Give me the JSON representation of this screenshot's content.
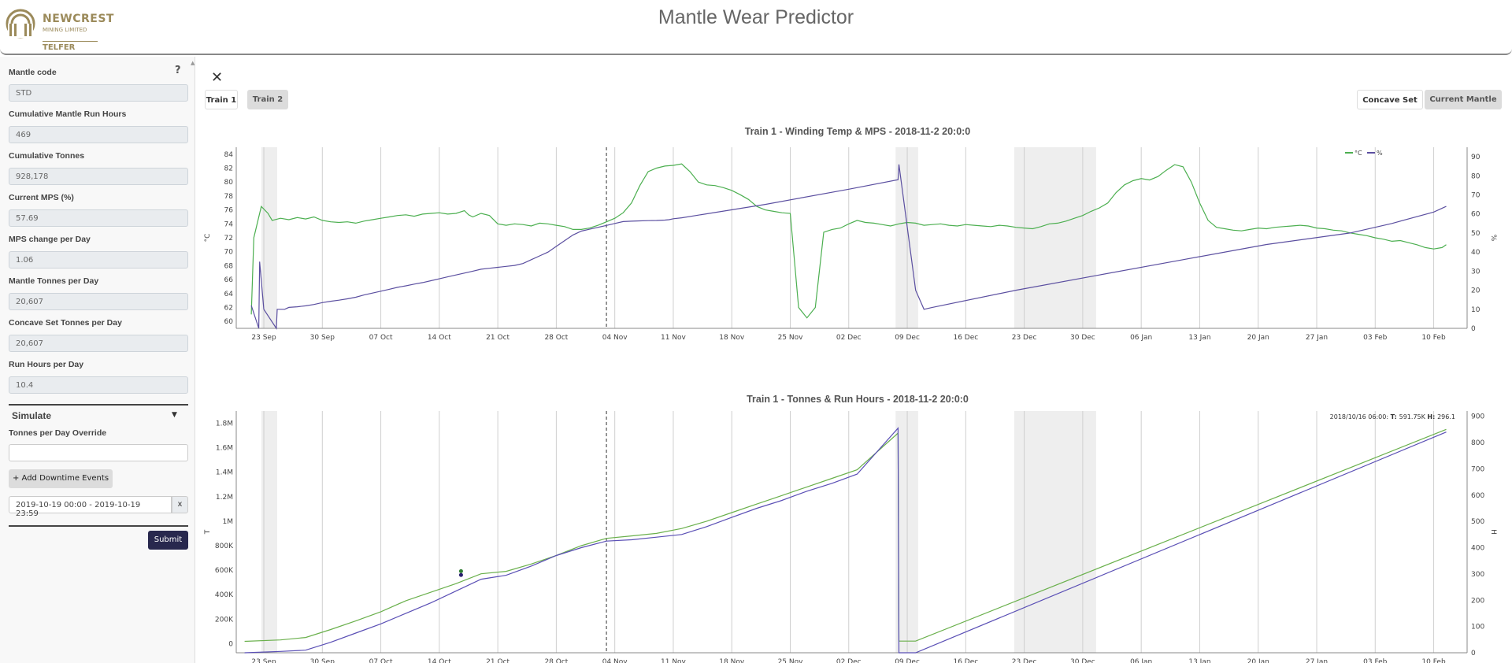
{
  "header": {
    "title": "Mantle Wear Predictor",
    "logo": {
      "name": "NEWCREST",
      "sub": "MINING LIMITED",
      "site": "TELFER"
    }
  },
  "sidebar": {
    "help": "?",
    "fields": [
      {
        "label": "Mantle code",
        "value": "STD"
      },
      {
        "label": "Cumulative Mantle Run Hours",
        "value": "469"
      },
      {
        "label": "Cumulative Tonnes",
        "value": "928,178"
      },
      {
        "label": "Current MPS (%)",
        "value": "57.69"
      },
      {
        "label": "MPS change per Day",
        "value": "1.06"
      },
      {
        "label": "Mantle Tonnes per Day",
        "value": "20,607"
      },
      {
        "label": "Concave Set Tonnes per Day",
        "value": "20,607"
      },
      {
        "label": "Run Hours per Day",
        "value": "10.4"
      }
    ],
    "simulate": {
      "label": "Simulate",
      "override_label": "Tonnes per Day Override",
      "override_value": "",
      "add_downtime": "+ Add Downtime Events",
      "date_range": "2019-10-19 00:00 - 2019-10-19 23:59",
      "remove": "x",
      "submit": "Submit"
    }
  },
  "main": {
    "close": "✕",
    "tabs": [
      "Train 1",
      "Train 2"
    ],
    "right_tabs": [
      "Concave Set",
      "Current Mantle"
    ]
  },
  "chart_data": [
    {
      "type": "line",
      "title": "Train 1 - Winding Temp & MPS - 2018-11-2 20:0:0",
      "ylabel": "°C",
      "y2label": "%",
      "ylim": [
        59,
        85
      ],
      "y2lim": [
        0,
        95
      ],
      "yticks": [
        60,
        62,
        64,
        66,
        68,
        70,
        72,
        74,
        76,
        78,
        80,
        82,
        84
      ],
      "y2ticks": [
        0,
        10,
        20,
        30,
        40,
        50,
        60,
        70,
        80,
        90
      ],
      "xticks": [
        "23 Sep",
        "30 Sep",
        "07 Oct",
        "14 Oct",
        "21 Oct",
        "28 Oct",
        "04 Nov",
        "11 Nov",
        "18 Nov",
        "25 Nov",
        "02 Dec",
        "09 Dec",
        "16 Dec",
        "23 Dec",
        "30 Dec",
        "06 Jan",
        "13 Jan",
        "20 Jan",
        "27 Jan",
        "03 Feb",
        "10 Feb"
      ],
      "legend": [
        "°C",
        "%"
      ],
      "legend_position": "top-right",
      "series": [
        {
          "name": "°C",
          "color": "#4caf50",
          "x": [
            -1.5,
            -1.2,
            -0.3,
            0.5,
            1,
            2,
            3,
            4,
            5,
            6,
            7,
            8,
            9,
            10,
            11,
            12,
            13,
            14,
            15,
            16,
            17,
            18,
            19,
            20,
            21,
            22,
            23,
            24,
            24.5,
            25,
            26,
            27,
            28,
            29,
            30,
            31,
            32,
            33,
            34,
            35,
            36,
            37,
            38,
            39,
            40,
            41,
            42,
            43,
            44,
            45,
            46,
            47,
            48,
            49,
            50,
            51,
            52,
            53,
            54,
            55,
            56,
            57,
            58,
            59,
            60,
            61,
            62,
            63,
            64,
            65,
            66,
            67,
            68,
            69,
            70,
            71,
            72,
            73,
            74,
            75,
            76,
            77,
            78,
            79,
            80,
            81,
            82,
            83,
            84,
            85,
            86,
            87,
            88,
            89,
            90,
            91,
            92,
            93,
            94,
            95,
            96,
            97,
            98,
            99,
            100,
            101,
            102,
            103,
            104,
            105,
            106,
            107,
            108,
            109,
            110,
            111,
            112,
            113,
            114,
            115,
            116,
            117,
            118,
            119,
            120,
            121,
            122,
            123,
            124,
            125,
            126,
            127,
            128,
            129,
            130,
            131,
            132,
            133,
            134,
            135,
            136,
            137,
            138,
            139,
            140,
            141,
            141.5
          ],
          "y": [
            61,
            72,
            76.5,
            75.5,
            74.5,
            74.8,
            74.6,
            74.9,
            74.7,
            75,
            74.5,
            74.3,
            74.2,
            74.3,
            74.1,
            74.4,
            74.6,
            74.8,
            75,
            75.2,
            75.3,
            75.1,
            75.4,
            75.5,
            75.6,
            75.4,
            75.5,
            75.9,
            75.3,
            75,
            75.5,
            75.2,
            74,
            73.8,
            74,
            73.9,
            73.7,
            74.1,
            74,
            73.8,
            73.6,
            73.2,
            73.2,
            73.4,
            73.8,
            74.3,
            74.8,
            75.6,
            77,
            79.5,
            81.5,
            82,
            82.3,
            82.4,
            82.6,
            81.5,
            80,
            79.6,
            79.5,
            79.2,
            78.8,
            78.2,
            77.5,
            76.5,
            76,
            75.8,
            75.6,
            75.5,
            62,
            60.5,
            62,
            72.8,
            73.2,
            73.4,
            74,
            74.5,
            74.2,
            74.1,
            73.9,
            73.7,
            74,
            74.2,
            74.1,
            73.8,
            73.9,
            74,
            73.8,
            73.7,
            73.9,
            73.8,
            73.7,
            73.6,
            73.8,
            73.7,
            73.5,
            73.4,
            73.3,
            73.6,
            74,
            74.1,
            74.4,
            74.8,
            75.2,
            75.8,
            76.3,
            77,
            78.5,
            79.6,
            80.2,
            80.5,
            80.3,
            80.8,
            81.7,
            82.5,
            82.2,
            80,
            77,
            74.5,
            73.5,
            73.3,
            73.1,
            73,
            73.2,
            73.4,
            73.3,
            73.5,
            73.6,
            73.7,
            73.8,
            73.7,
            73.4,
            73.3,
            73.1,
            73,
            72.7,
            72.5,
            72.3,
            72,
            71.8,
            71.5,
            71.6,
            71.3,
            71,
            70.6,
            70.4,
            70.6,
            71
          ]
        },
        {
          "name": "%",
          "color": "#5b4fa0",
          "x": [
            -1.5,
            -0.6,
            -0.5,
            0,
            1.5,
            1.6,
            2.5,
            3,
            4,
            5,
            6,
            7,
            8,
            9,
            10,
            11,
            12,
            13,
            14,
            15,
            16,
            17,
            18,
            19,
            20,
            21,
            22,
            23,
            24,
            25,
            26,
            27,
            28,
            29,
            30,
            31,
            32,
            33,
            34,
            35,
            36,
            37,
            38,
            39,
            40,
            41,
            42,
            43,
            44,
            45,
            46,
            47,
            48,
            48.5,
            49,
            50,
            60,
            70,
            75.9,
            76,
            78,
            79,
            80,
            90,
            100,
            110,
            120,
            130,
            135,
            140,
            141.5
          ],
          "y": [
            12,
            0,
            35,
            10,
            0,
            10,
            10,
            11,
            11.3,
            11.8,
            12.5,
            13.5,
            14.2,
            14.8,
            15.5,
            16.3,
            17.5,
            18.5,
            19.5,
            20.5,
            21.5,
            22.3,
            23.2,
            24,
            25,
            26,
            27,
            28,
            29,
            30,
            31,
            31.5,
            32,
            32.5,
            33,
            34,
            36,
            38,
            40,
            43,
            46,
            49,
            51,
            52,
            53,
            54,
            55,
            56,
            56.2,
            56.4,
            56.5,
            56.6,
            56.8,
            57,
            57.5,
            58,
            65,
            73,
            78,
            86,
            20,
            10,
            11,
            20,
            28,
            36,
            44,
            50,
            55,
            61,
            64
          ]
        }
      ]
    },
    {
      "type": "line",
      "title": "Train 1 - Tonnes & Run Hours - 2018-11-2 20:0:0",
      "ylabel": "T",
      "y2label": "H",
      "ylim": [
        -75000,
        1900000
      ],
      "y2lim": [
        0,
        920
      ],
      "yticks": [
        "0",
        "200K",
        "400K",
        "600K",
        "800K",
        "1M",
        "1.2M",
        "1.4M",
        "1.6M",
        "1.8M"
      ],
      "y2ticks": [
        0,
        100,
        200,
        300,
        400,
        500,
        600,
        700,
        800,
        900
      ],
      "xticks": [
        "23 Sep",
        "30 Sep",
        "07 Oct",
        "14 Oct",
        "21 Oct",
        "28 Oct",
        "04 Nov",
        "11 Nov",
        "18 Nov",
        "25 Nov",
        "02 Dec",
        "09 Dec",
        "16 Dec",
        "23 Dec",
        "30 Dec",
        "06 Jan",
        "13 Jan",
        "20 Jan",
        "27 Jan",
        "03 Feb",
        "10 Feb"
      ],
      "tooltip": {
        "date": "2018/10/16 06:00:",
        "t_label": "T:",
        "t_value": "591.75K",
        "h_label": "H:",
        "h_value": "296.1"
      },
      "series": [
        {
          "name": "T",
          "color": "#6ab04c",
          "x": [
            -2.3,
            2,
            5,
            8,
            11,
            14,
            17,
            20,
            23,
            26,
            29,
            32,
            35,
            38,
            41,
            44,
            47,
            50,
            53,
            56,
            59,
            62,
            65,
            68,
            71,
            75.9,
            76,
            78,
            141.5
          ],
          "y": [
            18000,
            30000,
            50000,
            115000,
            185000,
            260000,
            350000,
            420000,
            490000,
            570000,
            590000,
            650000,
            720000,
            800000,
            860000,
            880000,
            900000,
            940000,
            1000000,
            1070000,
            1140000,
            1210000,
            1280000,
            1350000,
            1420000,
            1720000,
            20000,
            20000,
            1750000
          ]
        },
        {
          "name": "H",
          "color": "#5a4fb5",
          "x": [
            -2.3,
            2,
            5,
            8,
            11,
            14,
            17,
            20,
            23,
            26,
            29,
            32,
            35,
            38,
            41,
            44,
            47,
            50,
            53,
            56,
            59,
            62,
            65,
            68,
            71,
            75.9,
            76,
            78,
            141.5
          ],
          "y": [
            0,
            5,
            10,
            40,
            75,
            110,
            150,
            190,
            235,
            280,
            295,
            330,
            370,
            400,
            425,
            430,
            440,
            450,
            480,
            515,
            550,
            580,
            615,
            645,
            680,
            855,
            0,
            0,
            840
          ]
        }
      ]
    }
  ]
}
